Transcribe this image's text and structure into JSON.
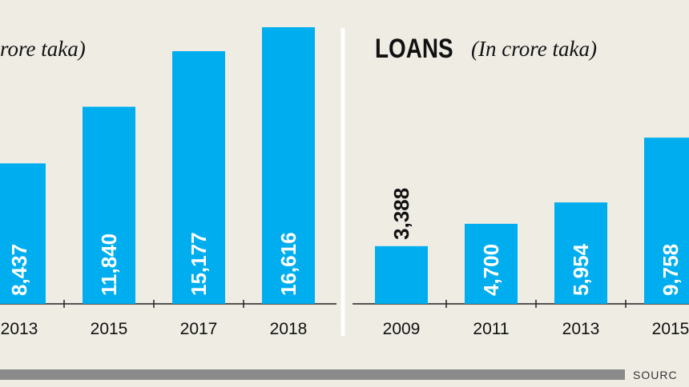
{
  "chart_data": [
    {
      "type": "bar",
      "title": "rore taka)",
      "categories": [
        "2013",
        "2015",
        "2017",
        "2018"
      ],
      "values": [
        8437,
        11840,
        15177,
        16616
      ],
      "value_labels": [
        "8,437",
        "11,840",
        "15,177",
        "16,616"
      ],
      "color": "#00aeef"
    },
    {
      "type": "bar",
      "title": "LOANS",
      "subtitle": "(In crore taka)",
      "categories": [
        "2009",
        "2011",
        "2013",
        "2015"
      ],
      "values": [
        3388,
        4700,
        5954,
        9758
      ],
      "value_labels": [
        "3,388",
        "4,700",
        "5,954",
        "9,758"
      ],
      "color": "#00aeef"
    }
  ],
  "footer": {
    "text": "SOURC"
  }
}
